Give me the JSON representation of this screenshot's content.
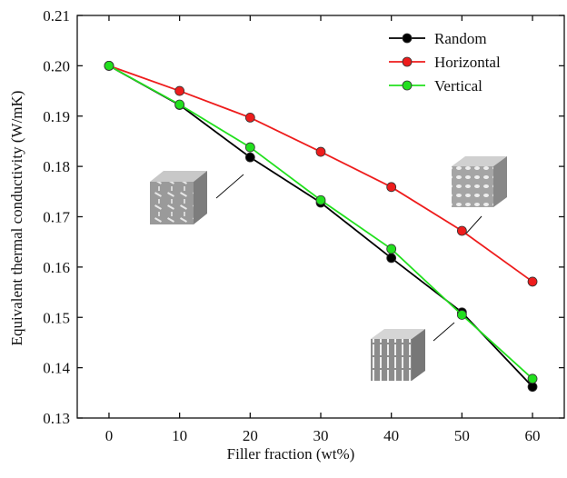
{
  "chart_data": {
    "type": "line",
    "x_label": "Filler fraction (wt%)",
    "y_label": "Equivalent thermal conductivity (W/mK)",
    "x": [
      0,
      10,
      20,
      30,
      40,
      50,
      60
    ],
    "xlim": [
      -4.5,
      64.5
    ],
    "xticks": [
      0,
      10,
      20,
      30,
      40,
      50,
      60
    ],
    "ylim": [
      0.13,
      0.21
    ],
    "yticks": [
      0.13,
      0.14,
      0.15,
      0.16,
      0.17,
      0.18,
      0.19,
      {
        "value": 0.2,
        "label": "0.20"
      },
      0.21
    ],
    "legend": "upper right",
    "series": [
      {
        "name": "Random",
        "color": "#000000",
        "values": [
          0.2,
          0.1922,
          0.1818,
          0.1728,
          0.1618,
          0.151,
          0.1362
        ]
      },
      {
        "name": "Horizontal",
        "color": "#ee1c1c",
        "values": [
          0.2,
          0.195,
          0.1897,
          0.1829,
          0.1759,
          0.1672,
          0.1571
        ]
      },
      {
        "name": "Vertical",
        "color": "#22e01e",
        "values": [
          0.2,
          0.1923,
          0.1838,
          0.1733,
          0.1636,
          0.1505,
          0.1378
        ]
      }
    ]
  }
}
